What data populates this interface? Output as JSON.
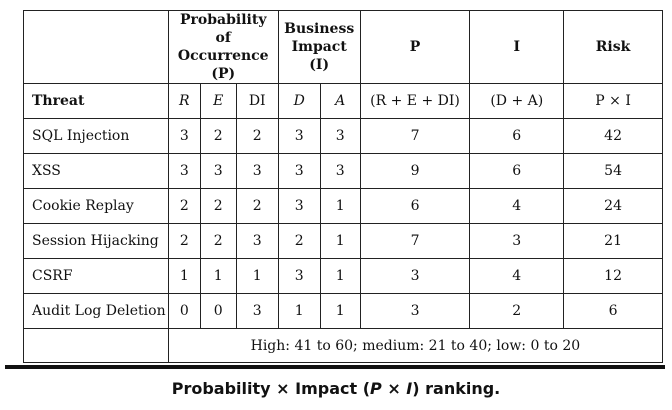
{
  "header_row1": {
    "prob_group": "Probability of Occurrence (P)",
    "impact_group": "Business Impact (I)",
    "p_label": "P",
    "i_label": "I",
    "risk_label": "Risk"
  },
  "header_row2": {
    "threat": "Threat",
    "r": "R",
    "e": "E",
    "di": "DI",
    "d": "D",
    "a": "A",
    "p_formula": "(R + E + DI)",
    "i_formula": "(D + A)",
    "risk_formula": "P × I"
  },
  "rows": [
    {
      "threat": "SQL Injection",
      "r": "3",
      "e": "2",
      "di": "2",
      "d": "3",
      "a": "3",
      "p": "7",
      "i": "6",
      "risk": "42"
    },
    {
      "threat": "XSS",
      "r": "3",
      "e": "3",
      "di": "3",
      "d": "3",
      "a": "3",
      "p": "9",
      "i": "6",
      "risk": "54"
    },
    {
      "threat": "Cookie Replay",
      "r": "2",
      "e": "2",
      "di": "2",
      "d": "3",
      "a": "1",
      "p": "6",
      "i": "4",
      "risk": "24"
    },
    {
      "threat": "Session Hijacking",
      "r": "2",
      "e": "2",
      "di": "3",
      "d": "2",
      "a": "1",
      "p": "7",
      "i": "3",
      "risk": "21"
    },
    {
      "threat": "CSRF",
      "r": "1",
      "e": "1",
      "di": "1",
      "d": "3",
      "a": "1",
      "p": "3",
      "i": "4",
      "risk": "12"
    },
    {
      "threat": "Audit Log Deletion",
      "r": "0",
      "e": "0",
      "di": "3",
      "d": "1",
      "a": "1",
      "p": "3",
      "i": "2",
      "risk": "6"
    }
  ],
  "footer": "High: 41 to 60; medium: 21 to 40; low: 0 to 20",
  "caption": {
    "prefix": "Probability × Impact (",
    "p": "P",
    "times": " × ",
    "i": "I",
    "suffix": ") ranking."
  }
}
